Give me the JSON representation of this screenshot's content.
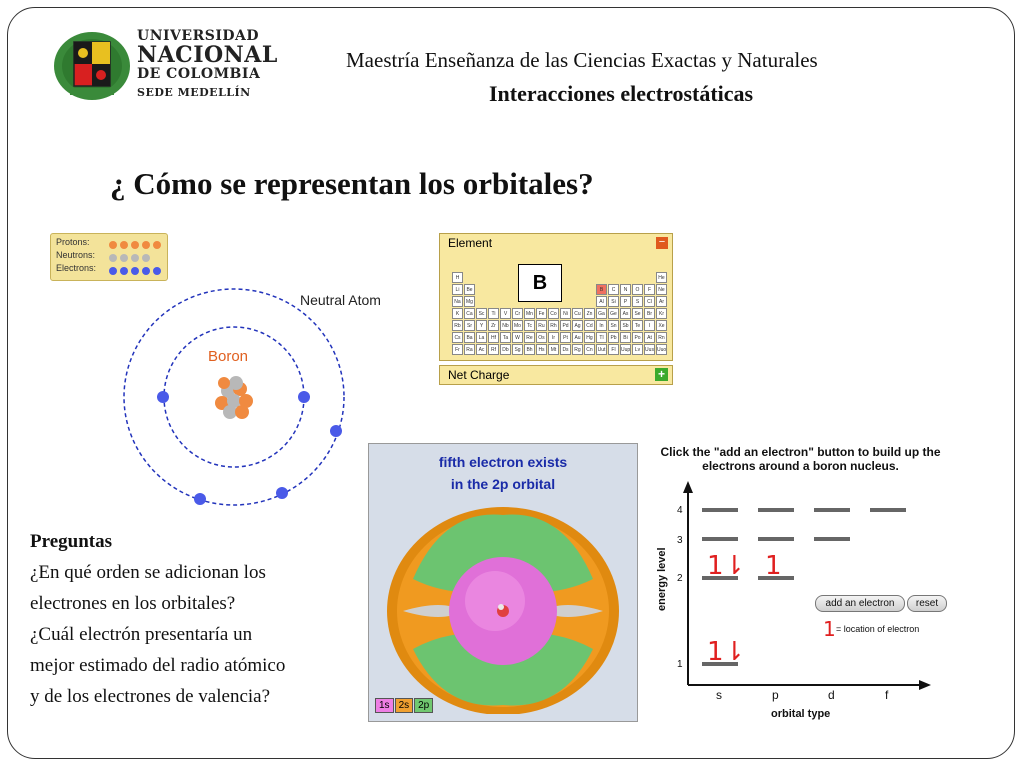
{
  "logo": {
    "line1": "UNIVERSIDAD",
    "line2": "NACIONAL",
    "line3": "DE COLOMBIA",
    "line4": "SEDE MEDELLÍN"
  },
  "header": {
    "program": "Maestría Enseñanza de las Ciencias Exactas  y Naturales",
    "subtitle": "Interacciones electrostáticas"
  },
  "title": "¿ Cómo se representan los orbitales?",
  "atom_sim": {
    "legend": {
      "protons": "Protons:",
      "neutrons": "Neutrons:",
      "electrons": "Electrons:"
    },
    "neutral_label": "Neutral Atom",
    "element_name": "Boron"
  },
  "periodic": {
    "panel_title": "Element",
    "symbol": "B",
    "net_charge": "Net Charge",
    "minus": "−",
    "plus": "+",
    "rows": [
      [
        "H",
        "",
        "",
        "",
        "",
        "",
        "",
        "",
        "",
        "",
        "",
        "",
        "",
        "",
        "",
        "",
        "",
        "He"
      ],
      [
        "Li",
        "Be",
        "",
        "",
        "",
        "",
        "",
        "",
        "",
        "",
        "",
        "",
        "B",
        "C",
        "N",
        "O",
        "F",
        "Ne"
      ],
      [
        "Na",
        "Mg",
        "",
        "",
        "",
        "",
        "",
        "",
        "",
        "",
        "",
        "",
        "Al",
        "Si",
        "P",
        "S",
        "Cl",
        "Ar"
      ],
      [
        "K",
        "Ca",
        "Sc",
        "Ti",
        "V",
        "Cr",
        "Mn",
        "Fe",
        "Co",
        "Ni",
        "Cu",
        "Zn",
        "Ga",
        "Ge",
        "As",
        "Se",
        "Br",
        "Kr"
      ],
      [
        "Rb",
        "Sr",
        "Y",
        "Zr",
        "Nb",
        "Mo",
        "Tc",
        "Ru",
        "Rh",
        "Pd",
        "Ag",
        "Cd",
        "In",
        "Sn",
        "Sb",
        "Te",
        "I",
        "Xe"
      ],
      [
        "Cs",
        "Ba",
        "La",
        "Hf",
        "Ta",
        "W",
        "Re",
        "Os",
        "Ir",
        "Pt",
        "Au",
        "Hg",
        "Tl",
        "Pb",
        "Bi",
        "Po",
        "At",
        "Rn"
      ],
      [
        "Fr",
        "Ra",
        "Ac",
        "Rf",
        "Db",
        "Sg",
        "Bh",
        "Hs",
        "Mt",
        "Ds",
        "Rg",
        "Cn",
        "Uut",
        "Fl",
        "Uup",
        "Lv",
        "Uus",
        "Uuo"
      ]
    ],
    "selected": "B"
  },
  "orbital_image": {
    "caption_line1": "fifth electron exists",
    "caption_line2": "in the 2p orbital",
    "tags": [
      "1s",
      "2s",
      "2p"
    ]
  },
  "energy_diagram": {
    "instruction": "Click the \"add an electron\" button to build up the electrons around a boron nucleus.",
    "y_axis_label": "energy level",
    "x_axis_label": "orbital type",
    "levels": [
      "4",
      "3",
      "2",
      "1"
    ],
    "orbital_types": [
      "s",
      "p",
      "d",
      "f"
    ],
    "add_button": "add an electron",
    "reset_button": "reset",
    "location_note": "= location of electron",
    "pair_symbol": "1⇂",
    "single_symbol": "1"
  },
  "questions": {
    "heading": "Preguntas",
    "lines": [
      "¿En qué orden se adicionan los",
      "electrones en los orbitales?",
      "¿Cuál electrón presentaría un",
      "mejor estimado del radio atómico",
      "y de los electrones de valencia?"
    ]
  },
  "colors": {
    "proton": "#f08a40",
    "neutron": "#b8b8b8",
    "electron": "#4a5ae8",
    "orbit": "#2233bb",
    "accent_red": "#e02020"
  }
}
